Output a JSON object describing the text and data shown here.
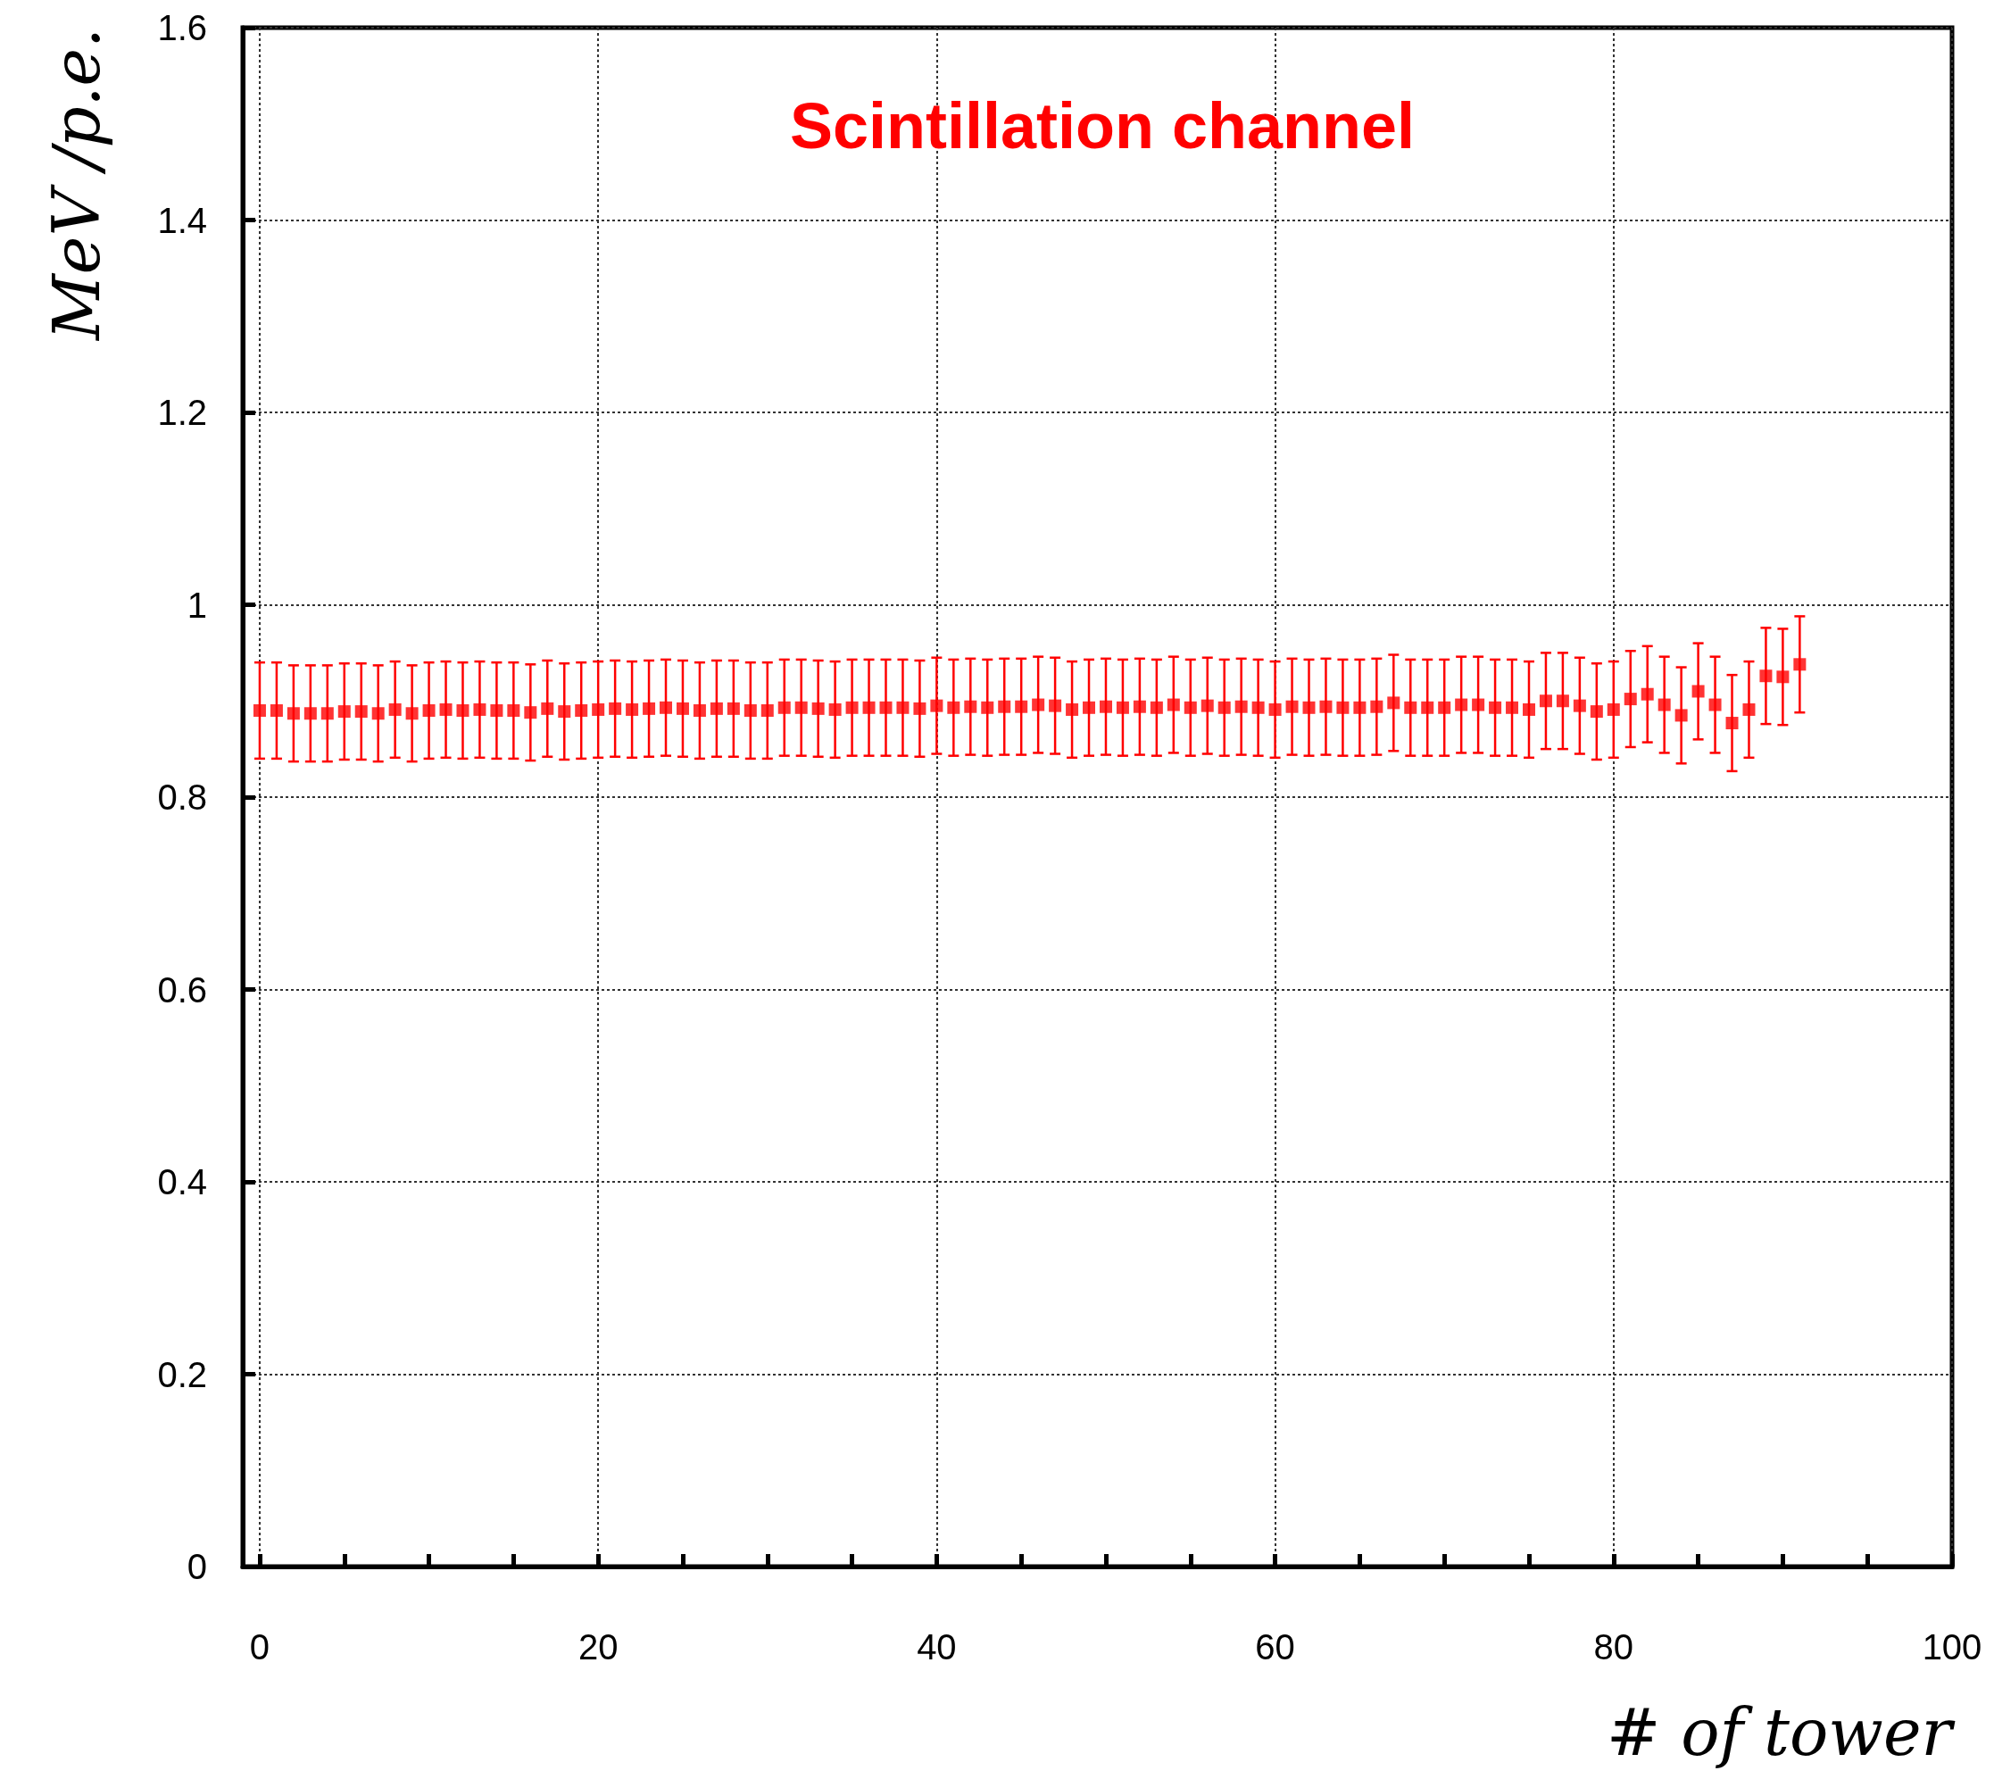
{
  "chart_data": {
    "type": "scatter",
    "title": "Scintillation channel",
    "xlabel": "# of tower",
    "ylabel": "MeV /p.e.",
    "x": [
      0,
      1,
      2,
      3,
      4,
      5,
      6,
      7,
      8,
      9,
      10,
      11,
      12,
      13,
      14,
      15,
      16,
      17,
      18,
      19,
      20,
      21,
      22,
      23,
      24,
      25,
      26,
      27,
      28,
      29,
      30,
      31,
      32,
      33,
      34,
      35,
      36,
      37,
      38,
      39,
      40,
      41,
      42,
      43,
      44,
      45,
      46,
      47,
      48,
      49,
      50,
      51,
      52,
      53,
      54,
      55,
      56,
      57,
      58,
      59,
      60,
      61,
      62,
      63,
      64,
      65,
      66,
      67,
      68,
      69,
      70,
      71,
      72,
      73,
      74,
      75,
      76,
      77,
      78,
      79,
      80,
      81,
      82,
      83,
      84,
      85,
      86,
      87,
      88,
      89,
      90,
      91
    ],
    "series": [
      {
        "color": "#ff0000",
        "values": [
          0.89,
          0.89,
          0.887,
          0.887,
          0.887,
          0.889,
          0.889,
          0.887,
          0.891,
          0.887,
          0.89,
          0.891,
          0.89,
          0.891,
          0.89,
          0.89,
          0.888,
          0.892,
          0.889,
          0.89,
          0.891,
          0.892,
          0.891,
          0.892,
          0.893,
          0.892,
          0.89,
          0.892,
          0.892,
          0.89,
          0.89,
          0.893,
          0.893,
          0.892,
          0.891,
          0.893,
          0.893,
          0.893,
          0.893,
          0.892,
          0.895,
          0.893,
          0.894,
          0.893,
          0.894,
          0.894,
          0.896,
          0.895,
          0.891,
          0.893,
          0.894,
          0.893,
          0.894,
          0.893,
          0.896,
          0.893,
          0.895,
          0.893,
          0.894,
          0.893,
          0.891,
          0.894,
          0.893,
          0.894,
          0.893,
          0.893,
          0.894,
          0.898,
          0.893,
          0.893,
          0.893,
          0.896,
          0.896,
          0.893,
          0.893,
          0.891,
          0.9,
          0.9,
          0.895,
          0.889,
          0.891,
          0.902,
          0.907,
          0.896,
          0.885,
          0.91,
          0.896,
          0.877,
          0.891,
          0.926,
          0.925,
          0.938
        ],
        "errors": [
          0.05,
          0.05,
          0.05,
          0.05,
          0.05,
          0.05,
          0.05,
          0.05,
          0.05,
          0.05,
          0.05,
          0.05,
          0.05,
          0.05,
          0.05,
          0.05,
          0.05,
          0.05,
          0.05,
          0.05,
          0.05,
          0.05,
          0.05,
          0.05,
          0.05,
          0.05,
          0.05,
          0.05,
          0.05,
          0.05,
          0.05,
          0.05,
          0.05,
          0.05,
          0.05,
          0.05,
          0.05,
          0.05,
          0.05,
          0.05,
          0.05,
          0.05,
          0.05,
          0.05,
          0.05,
          0.05,
          0.05,
          0.05,
          0.05,
          0.05,
          0.05,
          0.05,
          0.05,
          0.05,
          0.05,
          0.05,
          0.05,
          0.05,
          0.05,
          0.05,
          0.05,
          0.05,
          0.05,
          0.05,
          0.05,
          0.05,
          0.05,
          0.05,
          0.05,
          0.05,
          0.05,
          0.05,
          0.05,
          0.05,
          0.05,
          0.05,
          0.05,
          0.05,
          0.05,
          0.05,
          0.05,
          0.05,
          0.05,
          0.05,
          0.05,
          0.05,
          0.05,
          0.05,
          0.05,
          0.05,
          0.05,
          0.05
        ]
      }
    ],
    "xlim": [
      -1,
      100
    ],
    "xticks": [
      0,
      {
        "value": 5,
        "label": null
      },
      {
        "value": 10,
        "label": null
      },
      {
        "value": 15,
        "label": null
      },
      20,
      {
        "value": 25,
        "label": null
      },
      {
        "value": 30,
        "label": null
      },
      {
        "value": 35,
        "label": null
      },
      40,
      {
        "value": 45,
        "label": null
      },
      {
        "value": 50,
        "label": null
      },
      {
        "value": 55,
        "label": null
      },
      60,
      {
        "value": 65,
        "label": null
      },
      {
        "value": 70,
        "label": null
      },
      {
        "value": 75,
        "label": null
      },
      80,
      {
        "value": 85,
        "label": null
      },
      {
        "value": 90,
        "label": null
      },
      {
        "value": 95,
        "label": null
      },
      100
    ],
    "ylim": [
      0,
      1.6
    ],
    "yticks": [
      0,
      0.2,
      0.4,
      0.6,
      0.8,
      1,
      1.2,
      1.4,
      1.6
    ],
    "grid": true,
    "marker": "square"
  }
}
